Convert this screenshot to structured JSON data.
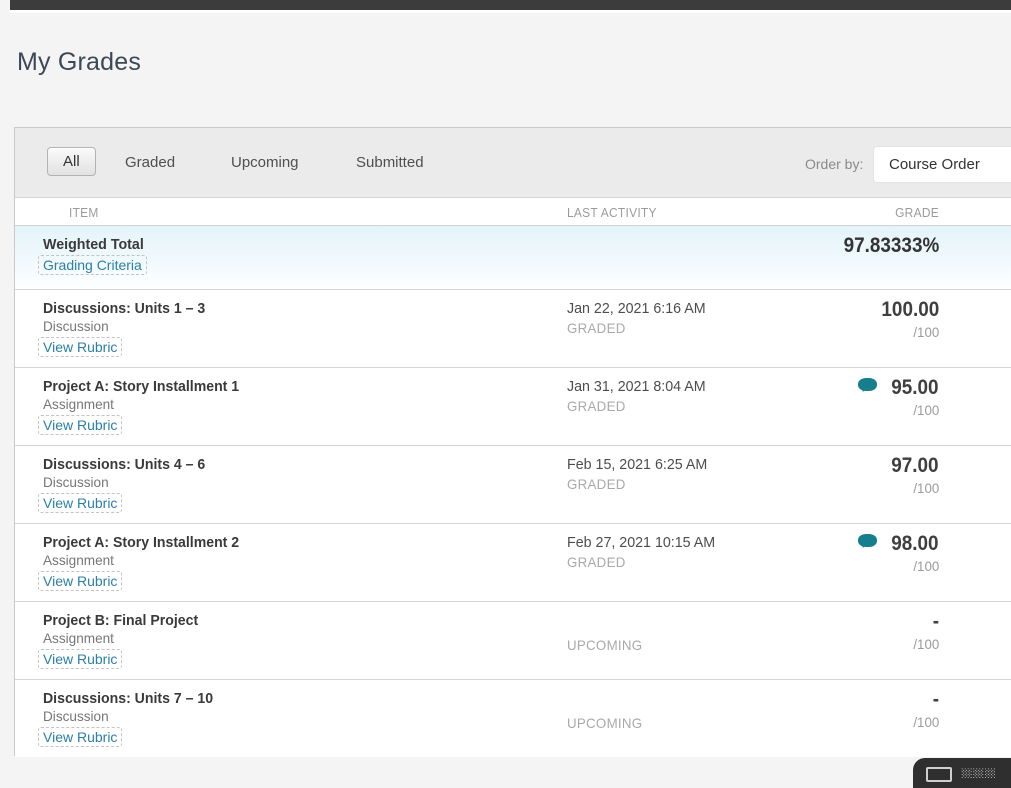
{
  "page": {
    "title": "My Grades"
  },
  "toolbar": {
    "tabs": [
      {
        "label": "All",
        "active": true
      },
      {
        "label": "Graded",
        "active": false
      },
      {
        "label": "Upcoming",
        "active": false
      },
      {
        "label": "Submitted",
        "active": false
      }
    ],
    "order_by_label": "Order by:",
    "order_by_value": "Course Order"
  },
  "table": {
    "headers": {
      "item": "ITEM",
      "activity": "LAST ACTIVITY",
      "grade": "GRADE"
    },
    "summary_row": {
      "title": "Weighted Total",
      "link": "Grading Criteria",
      "grade": "97.83333%"
    },
    "rows": [
      {
        "title": "Discussions: Units 1 – 3",
        "type": "Discussion",
        "link": "View Rubric",
        "date": "Jan 22, 2021 6:16 AM",
        "status": "GRADED",
        "grade": "100.00",
        "denominator": "/100",
        "has_comment": false
      },
      {
        "title": "Project A: Story Installment 1",
        "type": "Assignment",
        "link": "View Rubric",
        "date": "Jan 31, 2021 8:04 AM",
        "status": "GRADED",
        "grade": "95.00",
        "denominator": "/100",
        "has_comment": true
      },
      {
        "title": "Discussions: Units 4 – 6",
        "type": "Discussion",
        "link": "View Rubric",
        "date": "Feb 15, 2021 6:25 AM",
        "status": "GRADED",
        "grade": "97.00",
        "denominator": "/100",
        "has_comment": false
      },
      {
        "title": "Project A: Story Installment 2",
        "type": "Assignment",
        "link": "View Rubric",
        "date": "Feb 27, 2021 10:15 AM",
        "status": "GRADED",
        "grade": "98.00",
        "denominator": "/100",
        "has_comment": true
      },
      {
        "title": "Project B: Final Project",
        "type": "Assignment",
        "link": "View Rubric",
        "date": "",
        "status": "UPCOMING",
        "grade": "-",
        "denominator": "/100",
        "has_comment": false
      },
      {
        "title": "Discussions: Units 7 – 10",
        "type": "Discussion",
        "link": "View Rubric",
        "date": "",
        "status": "UPCOMING",
        "grade": "-",
        "denominator": "/100",
        "has_comment": false
      }
    ]
  },
  "bottom_widget": {
    "icon": "screen-icon"
  },
  "colors": {
    "accent_teal": "#177e8e",
    "link": "#2b7fa8",
    "summary_row_highlight": "#e4f3fa",
    "top_bar": "#3c3c3c",
    "tab_strip": "#ebebeb"
  }
}
